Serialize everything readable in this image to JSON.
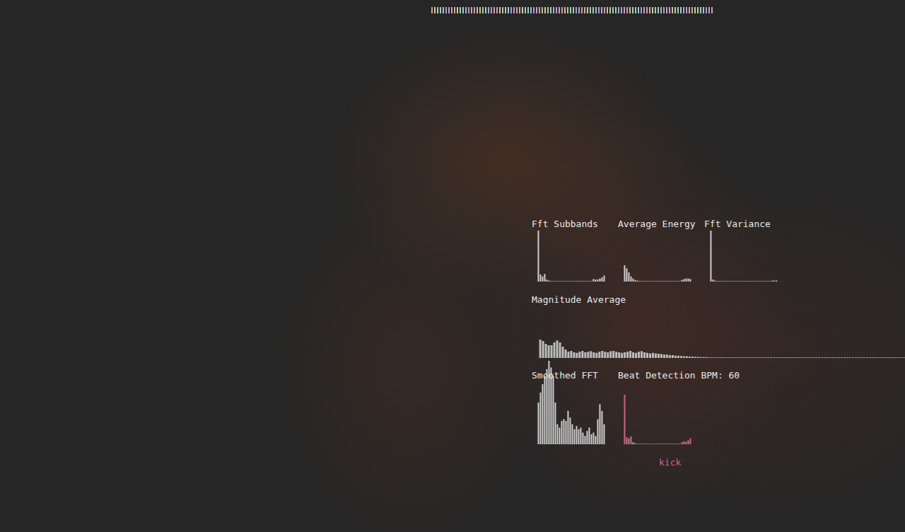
{
  "chart_data": [
    {
      "type": "bar",
      "title": "Fft Subbands",
      "ylim": [
        0,
        100
      ],
      "tick_labels": false,
      "color": "#cfcfcf",
      "values": [
        100,
        14,
        10,
        15,
        4,
        2,
        1,
        1,
        1,
        1,
        1,
        1,
        1,
        1,
        1,
        1,
        1,
        1,
        1,
        1,
        1,
        1,
        1,
        1,
        1,
        1,
        5,
        4,
        4,
        6,
        8,
        12
      ]
    },
    {
      "type": "bar",
      "title": "Average Energy",
      "ylim": [
        0,
        100
      ],
      "tick_labels": false,
      "color": "#cfcfcf",
      "values": [
        32,
        26,
        18,
        10,
        6,
        3,
        2,
        1,
        1,
        1,
        1,
        1,
        1,
        1,
        1,
        1,
        1,
        1,
        1,
        1,
        1,
        1,
        1,
        1,
        1,
        1,
        1,
        3,
        5,
        6,
        6,
        5
      ]
    },
    {
      "type": "bar",
      "title": "Fft Variance",
      "ylim": [
        0,
        100
      ],
      "tick_labels": false,
      "color": "#cfcfcf",
      "values": [
        100,
        4,
        2,
        1,
        1,
        1,
        1,
        1,
        1,
        1,
        1,
        1,
        1,
        1,
        1,
        1,
        1,
        1,
        1,
        1,
        1,
        1,
        1,
        1,
        1,
        1,
        1,
        1,
        1,
        2,
        2,
        2
      ]
    },
    {
      "type": "bar",
      "title": "Magnitude Average",
      "ylim": [
        0,
        100
      ],
      "tick_labels": false,
      "color": "#bdbdbd",
      "values": [
        65,
        60,
        50,
        45,
        45,
        55,
        62,
        55,
        40,
        30,
        22,
        25,
        20,
        18,
        22,
        25,
        20,
        22,
        24,
        20,
        18,
        22,
        25,
        22,
        20,
        24,
        25,
        22,
        20,
        18,
        20,
        22,
        25,
        20,
        18,
        22,
        24,
        20,
        18,
        16,
        18,
        16,
        15,
        14,
        12,
        12,
        10,
        10,
        8,
        8,
        7,
        6,
        6,
        5,
        5,
        4,
        4,
        3,
        3,
        3,
        2,
        2,
        2,
        2,
        2,
        2,
        2,
        2,
        2,
        2,
        2,
        2,
        2,
        2,
        2,
        2,
        2,
        2,
        2,
        2,
        2,
        2,
        2,
        2,
        2,
        2,
        2,
        2,
        2,
        2,
        2,
        2,
        2,
        2,
        2,
        2,
        2,
        2,
        2,
        2,
        2,
        2,
        2,
        2,
        2,
        2,
        2,
        2,
        2,
        2,
        2,
        2,
        2,
        2,
        2,
        2,
        2,
        2,
        2,
        2,
        2,
        2,
        2,
        2,
        2,
        2,
        2,
        2,
        2,
        2
      ]
    },
    {
      "type": "bar",
      "title": "Smoothed FFT",
      "ylim": [
        0,
        100
      ],
      "tick_labels": false,
      "color": "#cfcfcf",
      "values": [
        50,
        62,
        72,
        82,
        90,
        100,
        92,
        82,
        50,
        24,
        20,
        28,
        30,
        28,
        40,
        32,
        24,
        18,
        22,
        18,
        20,
        14,
        10,
        16,
        20,
        12,
        14,
        10,
        30,
        48,
        40,
        24
      ]
    },
    {
      "type": "bar",
      "title": "Beat Detection BPM: 60",
      "ylim": [
        0,
        100
      ],
      "tick_labels": false,
      "annotation": "kick",
      "values": [
        100,
        14,
        12,
        16,
        4,
        2,
        1,
        1,
        1,
        1,
        1,
        1,
        1,
        1,
        1,
        1,
        1,
        1,
        1,
        1,
        1,
        1,
        1,
        1,
        1,
        1,
        1,
        4,
        6,
        5,
        8,
        12
      ],
      "colors": [
        "#d0608a",
        "#c07a8e",
        "#c07a8e",
        "#c07a8e",
        "#bdbdbd",
        "#bdbdbd",
        "#bdbdbd",
        "#bdbdbd",
        "#bdbdbd",
        "#bdbdbd",
        "#bdbdbd",
        "#bdbdbd",
        "#bdbdbd",
        "#bdbdbd",
        "#bdbdbd",
        "#bdbdbd",
        "#bdbdbd",
        "#bdbdbd",
        "#bdbdbd",
        "#bdbdbd",
        "#bdbdbd",
        "#bdbdbd",
        "#bdbdbd",
        "#bdbdbd",
        "#bdbdbd",
        "#bdbdbd",
        "#bdbdbd",
        "#c07a8e",
        "#c07a8e",
        "#c07a8e",
        "#c07a8e",
        "#d0608a"
      ]
    }
  ]
}
